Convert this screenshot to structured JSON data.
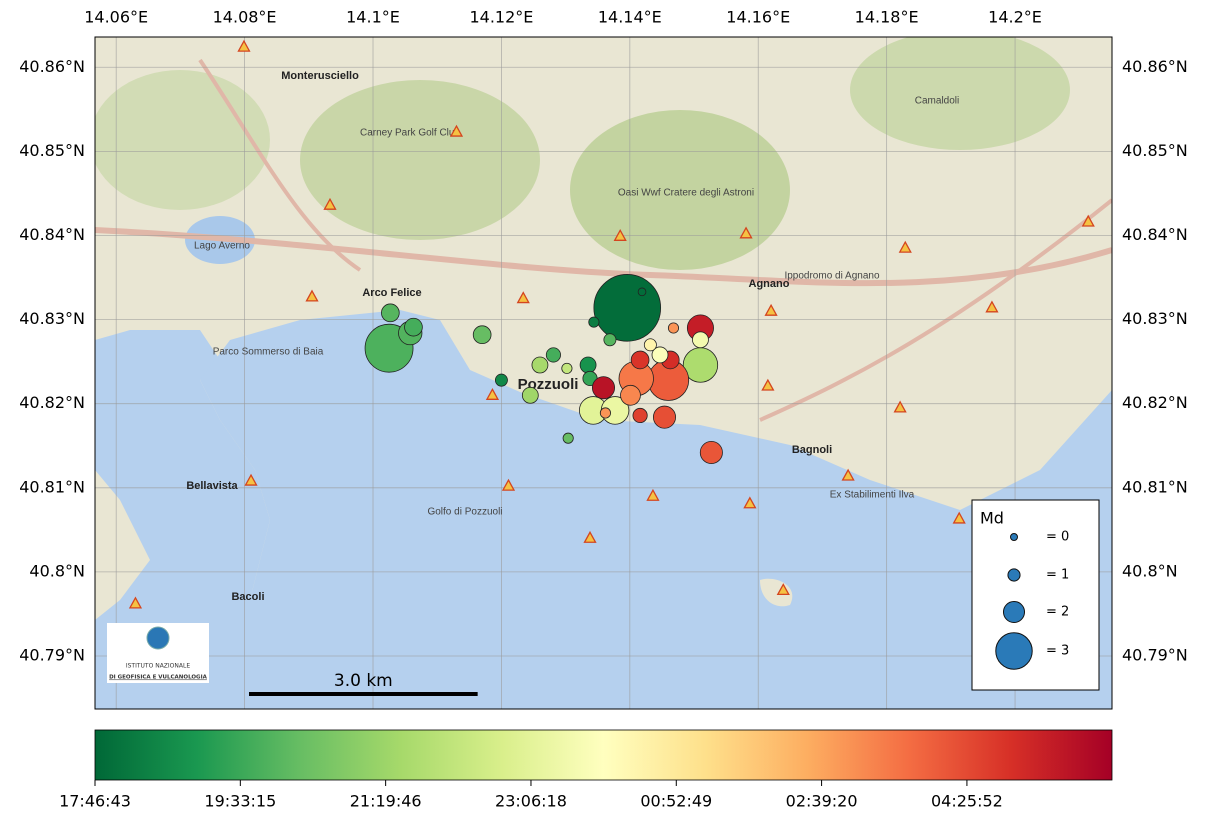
{
  "chart_data": {
    "type": "scatter",
    "xticks": [
      {
        "value": 14.06,
        "label": "14.06°E"
      },
      {
        "value": 14.08,
        "label": "14.08°E"
      },
      {
        "value": 14.1,
        "label": "14.1°E"
      },
      {
        "value": 14.12,
        "label": "14.12°E"
      },
      {
        "value": 14.14,
        "label": "14.14°E"
      },
      {
        "value": 14.16,
        "label": "14.16°E"
      },
      {
        "value": 14.18,
        "label": "14.18°E"
      },
      {
        "value": 14.2,
        "label": "14.2°E"
      }
    ],
    "yticks": [
      {
        "value": 40.79,
        "label": "40.79°N"
      },
      {
        "value": 40.8,
        "label": "40.8°N"
      },
      {
        "value": 40.81,
        "label": "40.81°N"
      },
      {
        "value": 40.82,
        "label": "40.82°N"
      },
      {
        "value": 40.83,
        "label": "40.83°N"
      },
      {
        "value": 40.84,
        "label": "40.84°N"
      },
      {
        "value": 40.85,
        "label": "40.85°N"
      },
      {
        "value": 40.86,
        "label": "40.86°N"
      }
    ],
    "xlim": [
      14.0567,
      14.2151
    ],
    "ylim": [
      40.7837,
      40.8636
    ],
    "grid": true,
    "x": [
      14.1396,
      14.1025,
      14.1027,
      14.1058,
      14.1063,
      14.117,
      14.12,
      14.1245,
      14.126,
      14.1281,
      14.1335,
      14.1338,
      14.1344,
      14.1369,
      14.1304,
      14.1419,
      14.151,
      14.151,
      14.146,
      14.141,
      14.1359,
      14.1343,
      14.1377,
      14.1454,
      14.1527,
      14.1416,
      14.1362,
      14.1416,
      14.1463,
      14.1447,
      14.1432,
      14.1468,
      14.1302,
      14.1401,
      14.151
    ],
    "y": [
      40.8314,
      40.8266,
      40.8308,
      40.8284,
      40.8291,
      40.8282,
      40.8228,
      40.821,
      40.8246,
      40.8258,
      40.8246,
      40.823,
      40.8297,
      40.8276,
      40.8159,
      40.8333,
      40.829,
      40.8246,
      40.8228,
      40.823,
      40.8219,
      40.8192,
      40.8192,
      40.8184,
      40.8142,
      40.8186,
      40.8189,
      40.8252,
      40.8252,
      40.8258,
      40.827,
      40.829,
      40.8242,
      40.821,
      40.8276
    ],
    "size": [
      4.1,
      3.5,
      1.7,
      2.2,
      1.7,
      1.7,
      1.0,
      1.5,
      1.5,
      1.3,
      1.5,
      1.3,
      0.7,
      1.0,
      0.7,
      0.2,
      2.4,
      2.9,
      3.2,
      2.9,
      2.1,
      2.5,
      2.5,
      2.1,
      2.1,
      1.3,
      0.7,
      1.7,
      1.7,
      1.5,
      1.0,
      0.7,
      0.7,
      1.9,
      1.5
    ],
    "time": [
      64500,
      71500,
      72000,
      71800,
      71000,
      73000,
      67000,
      77000,
      77500,
      71000,
      68000,
      70000,
      66000,
      72000,
      73000,
      64500,
      106000,
      78000,
      101000,
      99000,
      107000,
      83000,
      84000,
      102000,
      101500,
      103000,
      97000,
      104000,
      104500,
      86000,
      88000,
      97000,
      80000,
      98000,
      85000
    ],
    "colormap": [
      "#006837",
      "#1a9850",
      "#66bd63",
      "#a6d96a",
      "#d9ef8b",
      "#ffffbf",
      "#fee08b",
      "#fdae61",
      "#f46d43",
      "#d73027",
      "#a50026"
    ],
    "clim": [
      64003,
      108733
    ],
    "colorbar_ticks": [
      {
        "value": 64003,
        "label": "17:46:43"
      },
      {
        "value": 70395,
        "label": "19:33:15"
      },
      {
        "value": 76786,
        "label": "21:19:46"
      },
      {
        "value": 83178,
        "label": "23:06:18"
      },
      {
        "value": 89569,
        "label": "00:52:49"
      },
      {
        "value": 95960,
        "label": "02:39:20"
      },
      {
        "value": 102352,
        "label": "04:25:52"
      }
    ],
    "size_legend": {
      "title": "Md",
      "values": [
        0,
        1,
        2,
        3
      ],
      "value_labels": [
        "= 0",
        "= 1",
        "= 2",
        "= 3"
      ]
    },
    "stations": {
      "x": [
        14.0799,
        14.0933,
        14.113,
        14.0905,
        14.1234,
        14.1385,
        14.1581,
        14.1829,
        14.2114,
        14.162,
        14.1964,
        14.1615,
        14.1821,
        14.174,
        14.1913,
        14.1587,
        14.1436,
        14.1338,
        14.1211,
        14.1186,
        14.081,
        14.063,
        14.1639
      ],
      "y": [
        40.8624,
        40.8436,
        40.8523,
        40.8327,
        40.8325,
        40.8399,
        40.8402,
        40.8385,
        40.8416,
        40.831,
        40.8314,
        40.8221,
        40.8195,
        40.8114,
        40.8063,
        40.8081,
        40.809,
        40.804,
        40.8102,
        40.821,
        40.8108,
        40.7962,
        40.7978
      ]
    },
    "scale_bar": {
      "label": "3.0 km",
      "km": 3.0
    },
    "map_labels": [
      "Monterusciello",
      "Arco Felice",
      "Pozzuoli",
      "Agnano",
      "Bagnoli",
      "Bellavista",
      "Bacoli",
      "Lago Averno",
      "Golfo di Pozzuoli",
      "Parco Sommerso di Baia",
      "Oasi Wwf Cratere degli Astroni",
      "Ippodromo di Agnano",
      "Camaldoli",
      "Carney Park Golf Club",
      "Ex Stabilimenti Ilva"
    ],
    "logo": [
      "ISTITUTO NAZIONALE",
      "DI GEOFISICA E VULCANOLOGIA"
    ]
  }
}
